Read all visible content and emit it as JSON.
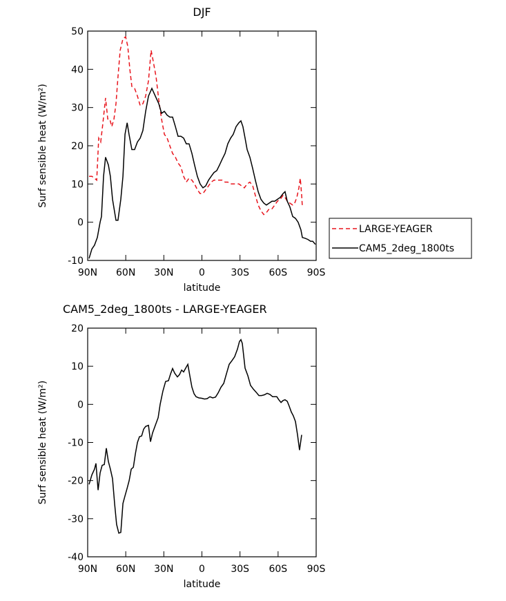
{
  "chart_data": [
    {
      "type": "line",
      "title": "DJF",
      "xlabel": "latitude",
      "ylabel": "Surf sensible heat (W/m²)",
      "xlim": [
        90,
        -90
      ],
      "xticks": [
        {
          "value": 90,
          "label": "90N"
        },
        {
          "value": 60,
          "label": "60N"
        },
        {
          "value": 30,
          "label": "30N"
        },
        0,
        {
          "value": -30,
          "label": "30S"
        },
        {
          "value": -60,
          "label": "60S"
        },
        {
          "value": -90,
          "label": "90S"
        }
      ],
      "ylim": [
        -10,
        50
      ],
      "yticks": [
        -10,
        0,
        10,
        20,
        30,
        40,
        50
      ],
      "legend": "outside-right",
      "series": [
        {
          "name": "LARGE-YEAGER",
          "color": "#e8141c",
          "dashed": true,
          "x": [
            88.9,
            86.7,
            84.6,
            82.9,
            81.3,
            79.7,
            78.0,
            75.9,
            74.2,
            72.6,
            71.0,
            69.3,
            67.7,
            66.1,
            64.4,
            62.2,
            60.1,
            58.4,
            56.8,
            55.2,
            53.0,
            50.8,
            48.6,
            46.5,
            44.3,
            42.1,
            40.0,
            38.3,
            36.1,
            34.0,
            31.8,
            29.6,
            27.4,
            25.3,
            23.1,
            20.9,
            18.8,
            16.6,
            14.4,
            12.3,
            10.1,
            7.9,
            5.8,
            3.6,
            1.4,
            -0.8,
            -3.0,
            -5.2,
            -7.3,
            -9.5,
            -11.7,
            -13.9,
            -16.0,
            -18.2,
            -20.4,
            -22.6,
            -24.7,
            -26.9,
            -29.1,
            -31.3,
            -33.4,
            -35.6,
            -37.8,
            -40.0,
            -42.1,
            -44.3,
            -46.5,
            -48.7,
            -50.8,
            -53.0,
            -55.2,
            -57.4,
            -59.5,
            -61.7,
            -63.9,
            -65.5,
            -67.2,
            -69.3,
            -71.5,
            -73.1,
            -74.8,
            -76.4,
            -77.5,
            -78.6,
            -79.1
          ],
          "values": [
            12,
            12,
            11.5,
            11,
            22,
            21,
            26,
            32.5,
            27,
            27,
            25,
            27,
            31,
            38,
            45,
            48,
            48.5,
            46,
            40,
            35.5,
            35,
            33,
            30.5,
            31,
            33,
            37,
            45,
            42,
            38,
            32,
            27,
            23,
            22,
            20,
            18,
            17,
            15.5,
            14.5,
            12,
            10.5,
            11.5,
            11,
            10,
            8.5,
            7.5,
            7.5,
            8.5,
            9.5,
            10.5,
            11,
            11,
            11,
            11,
            10.5,
            10.5,
            10,
            10,
            10,
            10,
            9.5,
            9,
            10,
            10.5,
            9.5,
            7,
            4.5,
            3,
            2,
            2.5,
            3.5,
            3.5,
            4.5,
            5.5,
            6,
            7,
            6.5,
            5.5,
            5,
            4.5,
            5,
            6.5,
            9,
            11.5,
            7,
            4
          ]
        },
        {
          "name": "CAM5_2deg_1800ts",
          "color": "#000000",
          "dashed": false,
          "x": [
            88.9,
            86.7,
            84.6,
            82.4,
            80.2,
            79.1,
            77.5,
            75.9,
            73.7,
            72.1,
            70.4,
            67.7,
            66.1,
            63.9,
            62.2,
            60.6,
            58.9,
            57.4,
            55.2,
            53.0,
            50.8,
            48.6,
            46.5,
            44.3,
            42.1,
            39.4,
            36.7,
            34.0,
            31.8,
            29.6,
            27.4,
            25.3,
            23.1,
            20.9,
            18.8,
            16.6,
            14.4,
            12.3,
            10.1,
            7.9,
            5.8,
            3.6,
            1.4,
            -0.8,
            -3.0,
            -5.2,
            -7.3,
            -9.5,
            -11.7,
            -13.9,
            -16.0,
            -18.2,
            -20.4,
            -22.6,
            -24.7,
            -26.9,
            -29.1,
            -30.7,
            -32.3,
            -34.0,
            -35.6,
            -37.8,
            -40.0,
            -42.1,
            -44.3,
            -46.5,
            -48.7,
            -50.8,
            -53.0,
            -55.2,
            -57.4,
            -59.5,
            -61.7,
            -63.9,
            -65.5,
            -67.2,
            -69.3,
            -71.5,
            -73.7,
            -75.8,
            -78.0,
            -79.1,
            -81.3,
            -83.5,
            -85.6,
            -87.3,
            -89.4
          ],
          "values": [
            -9.5,
            -7,
            -6,
            -4,
            0,
            1.5,
            12,
            17,
            15,
            12,
            6,
            0.5,
            0.5,
            6,
            12,
            23,
            26,
            23,
            19,
            19,
            21,
            22,
            24,
            29,
            33,
            35,
            33,
            31,
            28.5,
            29,
            28,
            27.5,
            27.5,
            25,
            22.5,
            22.5,
            22,
            20.5,
            20.5,
            18,
            15,
            12,
            10,
            9,
            9.5,
            11,
            12,
            13,
            13.5,
            15,
            16.5,
            18,
            20.5,
            22,
            23,
            25,
            26,
            26.5,
            25,
            22,
            19,
            17,
            14,
            11,
            8,
            6,
            5,
            4.5,
            5,
            5.5,
            5.5,
            6,
            6.5,
            7.5,
            8,
            5.5,
            4,
            1.5,
            1,
            0,
            -2,
            -4,
            -4.2,
            -4.5,
            -5,
            -5,
            -5.8
          ]
        }
      ]
    },
    {
      "type": "line",
      "title": "CAM5_2deg_1800ts - LARGE-YEAGER",
      "xlabel": "latitude",
      "ylabel": "Surf sensible heat (W/m²)",
      "xlim": [
        90,
        -90
      ],
      "xticks": [
        {
          "value": 90,
          "label": "90N"
        },
        {
          "value": 60,
          "label": "60N"
        },
        {
          "value": 30,
          "label": "30N"
        },
        0,
        {
          "value": -30,
          "label": "30S"
        },
        {
          "value": -60,
          "label": "60S"
        },
        {
          "value": -90,
          "label": "90S"
        }
      ],
      "ylim": [
        -40,
        20
      ],
      "yticks": [
        -40,
        -30,
        -20,
        -10,
        0,
        10,
        20
      ],
      "series": [
        {
          "color": "#000000",
          "dashed": false,
          "x": [
            88.9,
            86.7,
            84.6,
            83.5,
            81.8,
            80.2,
            78.6,
            76.9,
            75.3,
            73.7,
            72.1,
            70.4,
            68.8,
            67.2,
            65.5,
            63.9,
            62.2,
            60.6,
            58.9,
            57.3,
            55.7,
            54.0,
            52.4,
            50.8,
            49.2,
            47.5,
            45.9,
            44.3,
            42.1,
            40.5,
            38.9,
            36.7,
            34.5,
            32.9,
            30.7,
            28.6,
            26.4,
            24.7,
            23.1,
            21.5,
            19.3,
            17.7,
            16.0,
            14.4,
            12.8,
            11.1,
            9.5,
            7.9,
            6.2,
            4.6,
            2.4,
            0.2,
            -2.0,
            -4.1,
            -6.3,
            -8.5,
            -10.7,
            -12.8,
            -15.0,
            -17.2,
            -19.3,
            -21.5,
            -23.7,
            -25.8,
            -28.0,
            -29.6,
            -30.7,
            -31.8,
            -34.0,
            -36.2,
            -38.3,
            -40.5,
            -42.7,
            -44.9,
            -47.0,
            -49.2,
            -51.4,
            -53.6,
            -55.7,
            -57.4,
            -59.0,
            -60.6,
            -62.3,
            -63.9,
            -65.5,
            -67.2,
            -68.8,
            -70.4,
            -72.0,
            -73.7,
            -75.3,
            -76.9,
            -78.6
          ],
          "values": [
            -21,
            -18.5,
            -17,
            -15.5,
            -22.5,
            -18,
            -16,
            -15.8,
            -11.5,
            -15,
            -17,
            -19.5,
            -26,
            -31.5,
            -33.8,
            -33.6,
            -26,
            -24,
            -22,
            -20,
            -17,
            -16.5,
            -13,
            -10,
            -8.5,
            -8.3,
            -6.5,
            -5.8,
            -5.5,
            -9.8,
            -7.5,
            -5.5,
            -3.5,
            0,
            3.5,
            6,
            6.2,
            8,
            9.4,
            8.2,
            7.2,
            7.8,
            9,
            8.5,
            9.5,
            10.5,
            7.5,
            4.5,
            2.8,
            2,
            1.7,
            1.6,
            1.4,
            1.5,
            2,
            1.7,
            1.9,
            3,
            4.5,
            5.5,
            8,
            10.5,
            11.5,
            12.5,
            14.5,
            16.5,
            17,
            16,
            9.5,
            7.5,
            5,
            4,
            3.2,
            2.3,
            2.3,
            2.5,
            2.9,
            2.6,
            2,
            2,
            2,
            1.2,
            0.5,
            1,
            1.2,
            0.8,
            -0.5,
            -2,
            -3,
            -4.5,
            -8,
            -12,
            -8
          ]
        }
      ]
    }
  ]
}
